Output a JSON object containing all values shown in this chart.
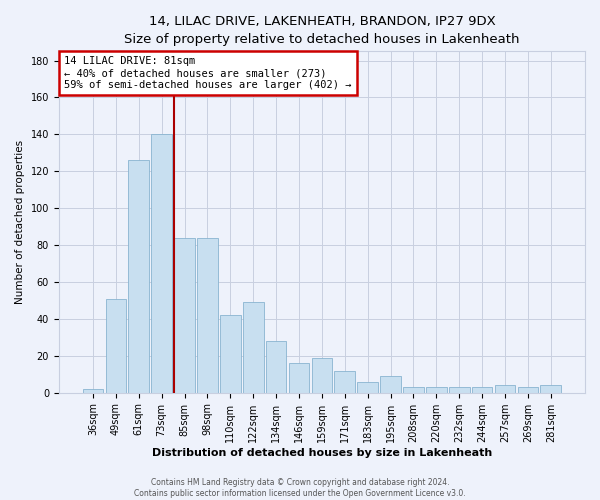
{
  "title": "14, LILAC DRIVE, LAKENHEATH, BRANDON, IP27 9DX",
  "subtitle": "Size of property relative to detached houses in Lakenheath",
  "xlabel": "Distribution of detached houses by size in Lakenheath",
  "ylabel": "Number of detached properties",
  "bar_labels": [
    "36sqm",
    "49sqm",
    "61sqm",
    "73sqm",
    "85sqm",
    "98sqm",
    "110sqm",
    "122sqm",
    "134sqm",
    "146sqm",
    "159sqm",
    "171sqm",
    "183sqm",
    "195sqm",
    "208sqm",
    "220sqm",
    "232sqm",
    "244sqm",
    "257sqm",
    "269sqm",
    "281sqm"
  ],
  "bar_values": [
    2,
    51,
    126,
    140,
    84,
    84,
    42,
    49,
    28,
    16,
    19,
    12,
    6,
    9,
    3,
    3,
    3,
    3,
    4,
    3,
    4
  ],
  "bar_color": "#c8dff0",
  "bar_edgecolor": "#89b4d0",
  "bar_linewidth": 0.6,
  "vline_x_index": 4,
  "vline_color": "#aa0000",
  "annotation_title": "14 LILAC DRIVE: 81sqm",
  "annotation_line1": "← 40% of detached houses are smaller (273)",
  "annotation_line2": "59% of semi-detached houses are larger (402) →",
  "annotation_box_color": "#cc0000",
  "annotation_fill": "#ffffff",
  "ylim": [
    0,
    185
  ],
  "yticks": [
    0,
    20,
    40,
    60,
    80,
    100,
    120,
    140,
    160,
    180
  ],
  "footer_line1": "Contains HM Land Registry data © Crown copyright and database right 2024.",
  "footer_line2": "Contains public sector information licensed under the Open Government Licence v3.0.",
  "background_color": "#eef2fb",
  "plot_bg_color": "#eef2fb",
  "grid_color": "#c8cfe0",
  "title_fontsize": 9.5,
  "subtitle_fontsize": 8.5,
  "xlabel_fontsize": 8,
  "ylabel_fontsize": 7.5,
  "tick_fontsize": 7,
  "annotation_fontsize": 7.5,
  "footer_fontsize": 5.5
}
